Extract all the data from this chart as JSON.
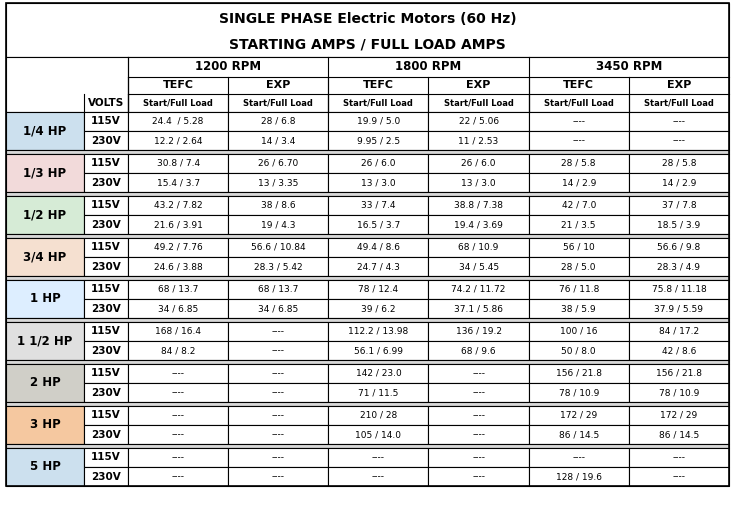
{
  "title1": "SINGLE PHASE Electric Motors (60 Hz)",
  "title2": "STARTING AMPS / FULL LOAD AMPS",
  "hp_colors": {
    "1/4 HP": "#cce0ee",
    "1/3 HP": "#f2dada",
    "1/2 HP": "#d6ebd6",
    "3/4 HP": "#f5e0d0",
    "1 HP": "#ddeeff",
    "1 1/2 HP": "#e0e0e0",
    "2 HP": "#d0cfc8",
    "3 HP": "#f5c8a0",
    "5 HP": "#cce0ee"
  },
  "data": [
    {
      "hp": "1/4 HP",
      "rows": [
        [
          "115V",
          "24.4  / 5.28",
          "28 / 6.8",
          "19.9 / 5.0",
          "22 / 5.06",
          "----",
          "----"
        ],
        [
          "230V",
          "12.2 / 2.64",
          "14 / 3.4",
          "9.95 / 2.5",
          "11 / 2.53",
          "----",
          "----"
        ]
      ]
    },
    {
      "hp": "1/3 HP",
      "rows": [
        [
          "115V",
          "30.8 / 7.4",
          "26 / 6.70",
          "26 / 6.0",
          "26 / 6.0",
          "28 / 5.8",
          "28 / 5.8"
        ],
        [
          "230V",
          "15.4 / 3.7",
          "13 / 3.35",
          "13 / 3.0",
          "13 / 3.0",
          "14 / 2.9",
          "14 / 2.9"
        ]
      ]
    },
    {
      "hp": "1/2 HP",
      "rows": [
        [
          "115V",
          "43.2 / 7.82",
          "38 / 8.6",
          "33 / 7.4",
          "38.8 / 7.38",
          "42 / 7.0",
          "37 / 7.8"
        ],
        [
          "230V",
          "21.6 / 3.91",
          "19 / 4.3",
          "16.5 / 3.7",
          "19.4 / 3.69",
          "21 / 3.5",
          "18.5 / 3.9"
        ]
      ]
    },
    {
      "hp": "3/4 HP",
      "rows": [
        [
          "115V",
          "49.2 / 7.76",
          "56.6 / 10.84",
          "49.4 / 8.6",
          "68 / 10.9",
          "56 / 10",
          "56.6 / 9.8"
        ],
        [
          "230V",
          "24.6 / 3.88",
          "28.3 / 5.42",
          "24.7 / 4.3",
          "34 / 5.45",
          "28 / 5.0",
          "28.3 / 4.9"
        ]
      ]
    },
    {
      "hp": "1 HP",
      "rows": [
        [
          "115V",
          "68 / 13.7",
          "68 / 13.7",
          "78 / 12.4",
          "74.2 / 11.72",
          "76 / 11.8",
          "75.8 / 11.18"
        ],
        [
          "230V",
          "34 / 6.85",
          "34 / 6.85",
          "39 / 6.2",
          "37.1 / 5.86",
          "38 / 5.9",
          "37.9 / 5.59"
        ]
      ]
    },
    {
      "hp": "1 1/2 HP",
      "rows": [
        [
          "115V",
          "168 / 16.4",
          "----",
          "112.2 / 13.98",
          "136 / 19.2",
          "100 / 16",
          "84 / 17.2"
        ],
        [
          "230V",
          "84 / 8.2",
          "----",
          "56.1 / 6.99",
          "68 / 9.6",
          "50 / 8.0",
          "42 / 8.6"
        ]
      ]
    },
    {
      "hp": "2 HP",
      "rows": [
        [
          "115V",
          "----",
          "----",
          "142 / 23.0",
          "----",
          "156 / 21.8",
          "156 / 21.8"
        ],
        [
          "230V",
          "----",
          "----",
          "71 / 11.5",
          "----",
          "78 / 10.9",
          "78 / 10.9"
        ]
      ]
    },
    {
      "hp": "3 HP",
      "rows": [
        [
          "115V",
          "----",
          "----",
          "210 / 28",
          "----",
          "172 / 29",
          "172 / 29"
        ],
        [
          "230V",
          "----",
          "----",
          "105 / 14.0",
          "----",
          "86 / 14.5",
          "86 / 14.5"
        ]
      ]
    },
    {
      "hp": "5 HP",
      "rows": [
        [
          "115V",
          "----",
          "----",
          "----",
          "----",
          "----",
          "----"
        ],
        [
          "230V",
          "----",
          "----",
          "----",
          "----",
          "128 / 19.6",
          "----"
        ]
      ]
    }
  ]
}
